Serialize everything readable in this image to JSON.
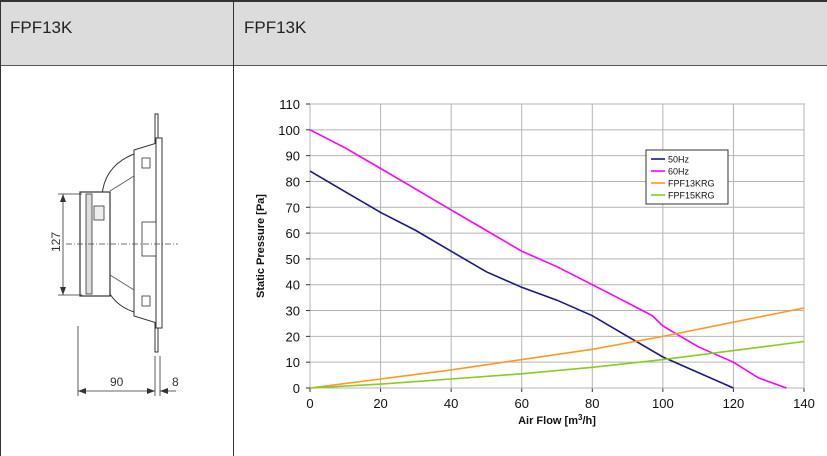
{
  "header": {
    "left_title": "FPF13K",
    "right_title": "FPF13K"
  },
  "drawing": {
    "dim_height": "127",
    "dim_depth": "90",
    "dim_flange": "8"
  },
  "chart_data": {
    "type": "line",
    "xlabel": "Air Flow [m",
    "xlabel_sup": "3",
    "xlabel_end": "/h]",
    "ylabel": "Static Pressure [Pa]",
    "xlim": [
      0,
      140
    ],
    "ylim": [
      0,
      110
    ],
    "xticks": [
      "0",
      "20",
      "40",
      "60",
      "80",
      "100",
      "120",
      "140"
    ],
    "yticks": [
      "0",
      "10",
      "20",
      "30",
      "40",
      "50",
      "60",
      "70",
      "80",
      "90",
      "100",
      "110"
    ],
    "grid": true,
    "legend_position": "top-right",
    "series": [
      {
        "name": "50Hz",
        "color": "#1a1a80",
        "points": [
          [
            0,
            84
          ],
          [
            10,
            76
          ],
          [
            20,
            68
          ],
          [
            30,
            61
          ],
          [
            40,
            53
          ],
          [
            50,
            45
          ],
          [
            60,
            39
          ],
          [
            70,
            34
          ],
          [
            80,
            28
          ],
          [
            90,
            20
          ],
          [
            100,
            12
          ],
          [
            110,
            6
          ],
          [
            120,
            0
          ]
        ]
      },
      {
        "name": "60Hz",
        "color": "#ff00ff",
        "points": [
          [
            0,
            100
          ],
          [
            10,
            93
          ],
          [
            20,
            85
          ],
          [
            30,
            77
          ],
          [
            40,
            69
          ],
          [
            50,
            61
          ],
          [
            60,
            53
          ],
          [
            70,
            47
          ],
          [
            80,
            40
          ],
          [
            90,
            33
          ],
          [
            97,
            28
          ],
          [
            100,
            24
          ],
          [
            110,
            16
          ],
          [
            120,
            10
          ],
          [
            127,
            4
          ],
          [
            135,
            0
          ]
        ]
      },
      {
        "name": "FPF13KRG",
        "color": "#ff9922",
        "points": [
          [
            0,
            0
          ],
          [
            20,
            3.5
          ],
          [
            40,
            7
          ],
          [
            60,
            11
          ],
          [
            80,
            15
          ],
          [
            100,
            20
          ],
          [
            120,
            25.5
          ],
          [
            140,
            31
          ]
        ]
      },
      {
        "name": "FPF15KRG",
        "color": "#88cc22",
        "points": [
          [
            0,
            0
          ],
          [
            20,
            1.5
          ],
          [
            40,
            3.5
          ],
          [
            60,
            5.5
          ],
          [
            80,
            8
          ],
          [
            100,
            11
          ],
          [
            120,
            14.5
          ],
          [
            140,
            18
          ]
        ]
      }
    ]
  }
}
